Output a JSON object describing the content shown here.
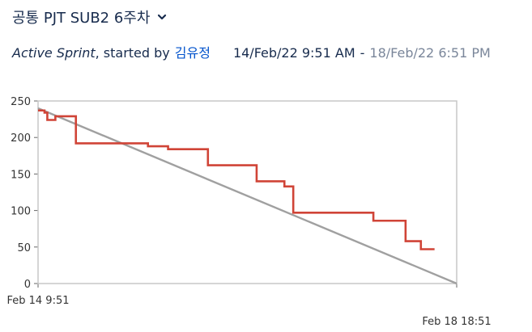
{
  "header": {
    "sprint_name": "공통 PJT SUB2 6주차",
    "dropdown_icon": "chevron-down-icon"
  },
  "sprint_info": {
    "status": "Active Sprint",
    "started_by_text": ", started by",
    "user": "김유정",
    "start": "14/Feb/22 9:51 AM",
    "separator": "-",
    "end": "18/Feb/22 6:51 PM"
  },
  "chart_data": {
    "type": "line",
    "title": "",
    "xlabel": "",
    "ylabel": "",
    "ylim": [
      0,
      250
    ],
    "xlim": [
      0,
      104
    ],
    "y_ticks": [
      0,
      50,
      100,
      150,
      200,
      250
    ],
    "x_ticks": [
      {
        "x": 0,
        "label": "Feb 14 9:51"
      },
      {
        "x": 104,
        "label": "Feb 18 18:51"
      }
    ],
    "grid": false,
    "colors": {
      "remaining": "#d04437",
      "guideline": "#a0a0a0",
      "frame": "#c7c7c7"
    },
    "series": [
      {
        "role": "remaining",
        "points": [
          [
            0,
            237
          ],
          [
            1.6,
            237
          ],
          [
            1.6,
            234
          ],
          [
            2.3,
            234
          ],
          [
            2.3,
            224
          ],
          [
            4.3,
            224
          ],
          [
            4.3,
            229
          ],
          [
            9.4,
            229
          ],
          [
            9.4,
            192
          ],
          [
            27.3,
            192
          ],
          [
            27.3,
            188
          ],
          [
            32.3,
            188
          ],
          [
            32.3,
            184
          ],
          [
            42.2,
            184
          ],
          [
            42.2,
            162
          ],
          [
            54.3,
            162
          ],
          [
            54.3,
            140
          ],
          [
            61.2,
            140
          ],
          [
            61.2,
            133
          ],
          [
            63.4,
            133
          ],
          [
            63.4,
            97
          ],
          [
            83.3,
            97
          ],
          [
            83.3,
            86
          ],
          [
            91.3,
            86
          ],
          [
            91.3,
            58
          ],
          [
            95.1,
            58
          ],
          [
            95.1,
            47
          ],
          [
            98.5,
            47
          ]
        ]
      },
      {
        "role": "guideline",
        "points": [
          [
            0,
            240
          ],
          [
            104,
            0
          ]
        ]
      }
    ]
  }
}
